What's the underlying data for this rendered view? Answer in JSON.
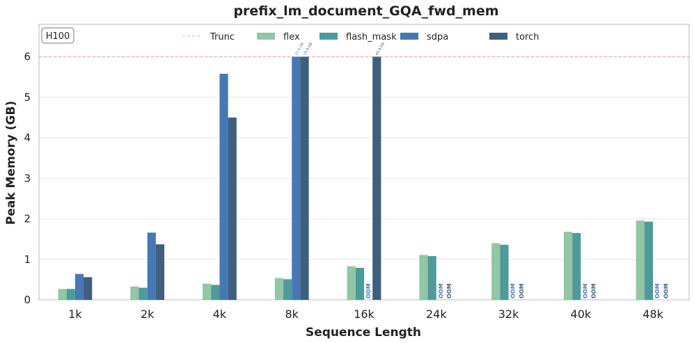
{
  "chart_data": {
    "type": "bar",
    "title": "prefix_lm_document_GQA_fwd_mem",
    "xlabel": "Sequence Length",
    "ylabel": "Peak Memory (GB)",
    "ylim": [
      0,
      6.8
    ],
    "yticks": [
      0,
      1,
      2,
      3,
      4,
      5,
      6
    ],
    "grid": true,
    "badge": "H100",
    "truncation": {
      "label": "Trunc",
      "value": 6,
      "color": "#f0a0a0"
    },
    "legend_position": "top-center",
    "categories": [
      "1k",
      "2k",
      "4k",
      "8k",
      "16k",
      "24k",
      "32k",
      "40k",
      "48k"
    ],
    "series": [
      {
        "name": "flex",
        "color": "#93c6a4",
        "values": [
          0.27,
          0.33,
          0.4,
          0.54,
          0.83,
          1.11,
          1.4,
          1.68,
          1.96
        ]
      },
      {
        "name": "flash_mask",
        "color": "#4f9a9a",
        "values": [
          0.27,
          0.3,
          0.37,
          0.51,
          0.79,
          1.08,
          1.36,
          1.65,
          1.93
        ]
      },
      {
        "name": "sdpa",
        "color": "#4778b5",
        "values": [
          0.64,
          1.66,
          5.58,
          6,
          null,
          null,
          null,
          null,
          null
        ],
        "labels": [
          null,
          null,
          null,
          "21.0 GB",
          "OOM",
          "OOM",
          "OOM",
          "OOM",
          "OOM"
        ]
      },
      {
        "name": "torch",
        "color": "#3e5f7e",
        "values": [
          0.56,
          1.37,
          4.5,
          6,
          6,
          null,
          null,
          null,
          null
        ],
        "labels": [
          null,
          null,
          null,
          "15.8 GB",
          "65.9 GB",
          "OOM",
          "OOM",
          "OOM",
          "OOM"
        ]
      }
    ]
  }
}
